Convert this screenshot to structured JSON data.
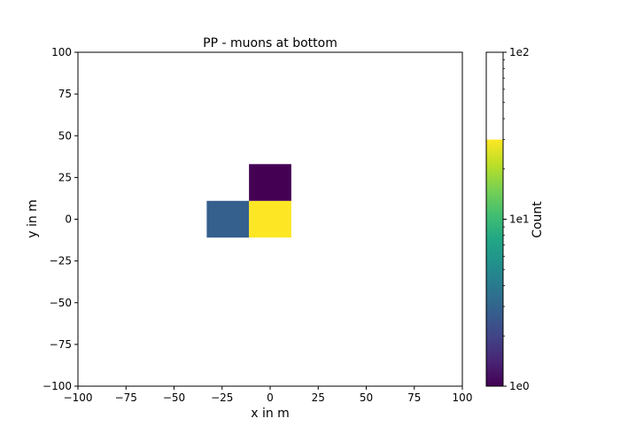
{
  "chart_data": {
    "type": "heatmap",
    "title": "PP - muons at bottom",
    "xlabel": "x in m",
    "ylabel": "y in m",
    "xlim": [
      -100,
      100
    ],
    "ylim": [
      -100,
      100
    ],
    "xticks": [
      -100,
      -75,
      -50,
      -25,
      0,
      25,
      50,
      75,
      100
    ],
    "yticks": [
      -100,
      -75,
      -50,
      -25,
      0,
      25,
      50,
      75,
      100
    ],
    "xtick_labels": [
      "−100",
      "−75",
      "−50",
      "−25",
      "0",
      "25",
      "50",
      "75",
      "100"
    ],
    "ytick_labels": [
      "−100",
      "−75",
      "−50",
      "−25",
      "0",
      "25",
      "50",
      "75",
      "100"
    ],
    "grid": false,
    "colormap": "viridis",
    "scale": "log",
    "cells": [
      {
        "x0": -33,
        "x1": -11,
        "y0": -11,
        "y1": 11,
        "count": 3,
        "color": "#355f8d"
      },
      {
        "x0": -11,
        "x1": 11,
        "y0": -11,
        "y1": 11,
        "count": 30,
        "color": "#fde725"
      },
      {
        "x0": -11,
        "x1": 11,
        "y0": 11,
        "y1": 33,
        "count": 1,
        "color": "#440154"
      }
    ],
    "colorbar": {
      "label": "Count",
      "scale": "log",
      "range": [
        1,
        100
      ],
      "ticks": [
        1,
        10,
        100
      ],
      "tick_labels": [
        "1e0",
        "1e1",
        "1e2"
      ],
      "colored_max": 30
    }
  }
}
